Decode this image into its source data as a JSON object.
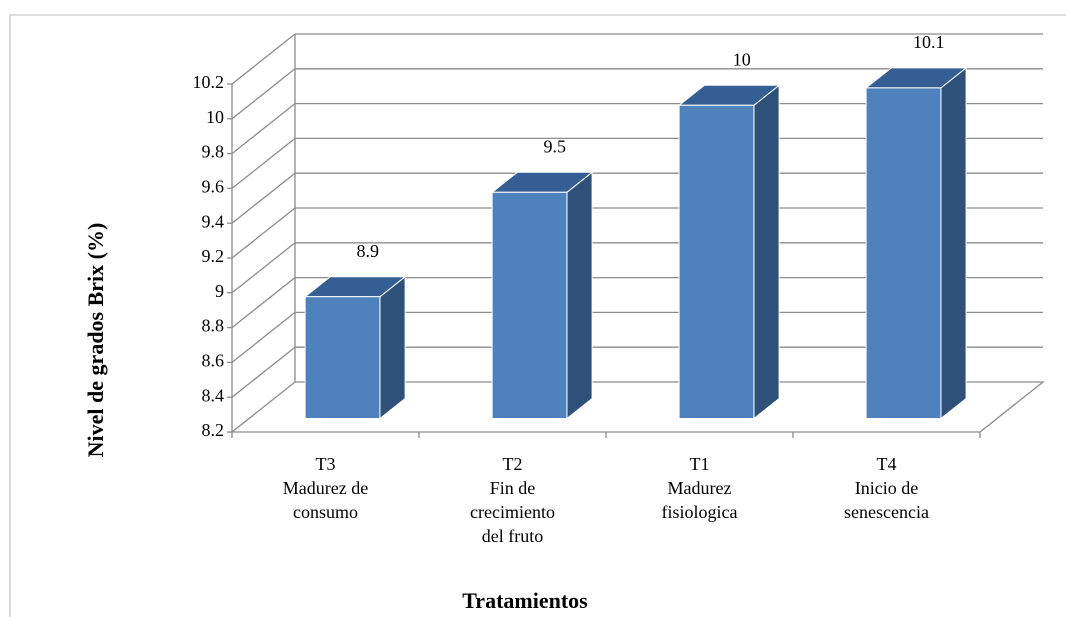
{
  "chart_data": {
    "type": "bar3d",
    "categories": [
      [
        "T3",
        "Madurez de",
        "consumo"
      ],
      [
        "T2",
        "Fin de",
        "crecimiento",
        "del fruto"
      ],
      [
        "T1",
        "Madurez",
        "fisiologica"
      ],
      [
        "T4",
        "Inicio de",
        "senescencia"
      ]
    ],
    "values": [
      8.9,
      9.5,
      10,
      10.1
    ],
    "color": "#4f81bd",
    "ylim": [
      8.2,
      10.2
    ],
    "yticks": [
      8.2,
      8.4,
      8.6,
      8.8,
      9,
      9.2,
      9.4,
      9.6,
      9.8,
      10,
      10.2
    ],
    "ylabel": "Nivel de grados Brix (%)",
    "xlabel": "Tratamientos",
    "grid": true
  }
}
